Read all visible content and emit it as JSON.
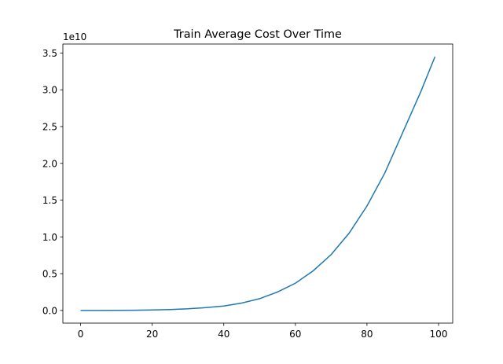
{
  "chart_data": {
    "type": "line",
    "title": "Train Average Cost Over Time",
    "y_offset_label": "1e10",
    "x": [
      0,
      5,
      10,
      15,
      20,
      25,
      30,
      35,
      40,
      45,
      50,
      55,
      60,
      65,
      70,
      75,
      80,
      85,
      90,
      95,
      99
    ],
    "series": [
      {
        "color": "#1f77b4",
        "values": [
          0,
          0,
          0.001,
          0.003,
          0.006,
          0.012,
          0.022,
          0.038,
          0.06,
          0.1,
          0.16,
          0.25,
          0.37,
          0.54,
          0.76,
          1.05,
          1.42,
          1.87,
          2.42,
          2.97,
          3.45
        ]
      }
    ],
    "xlim": [
      -4.95,
      103.95
    ],
    "xticks": [
      0,
      20,
      40,
      60,
      80,
      100
    ],
    "ylim": [
      -0.1725,
      3.6225
    ],
    "yticks": [
      {
        "value": 0,
        "label": "0.0"
      },
      0.5,
      {
        "value": 1,
        "label": "1.0"
      },
      1.5,
      {
        "value": 2,
        "label": "2.0"
      },
      2.5,
      {
        "value": 3,
        "label": "3.0"
      },
      3.5
    ],
    "grid": false
  }
}
